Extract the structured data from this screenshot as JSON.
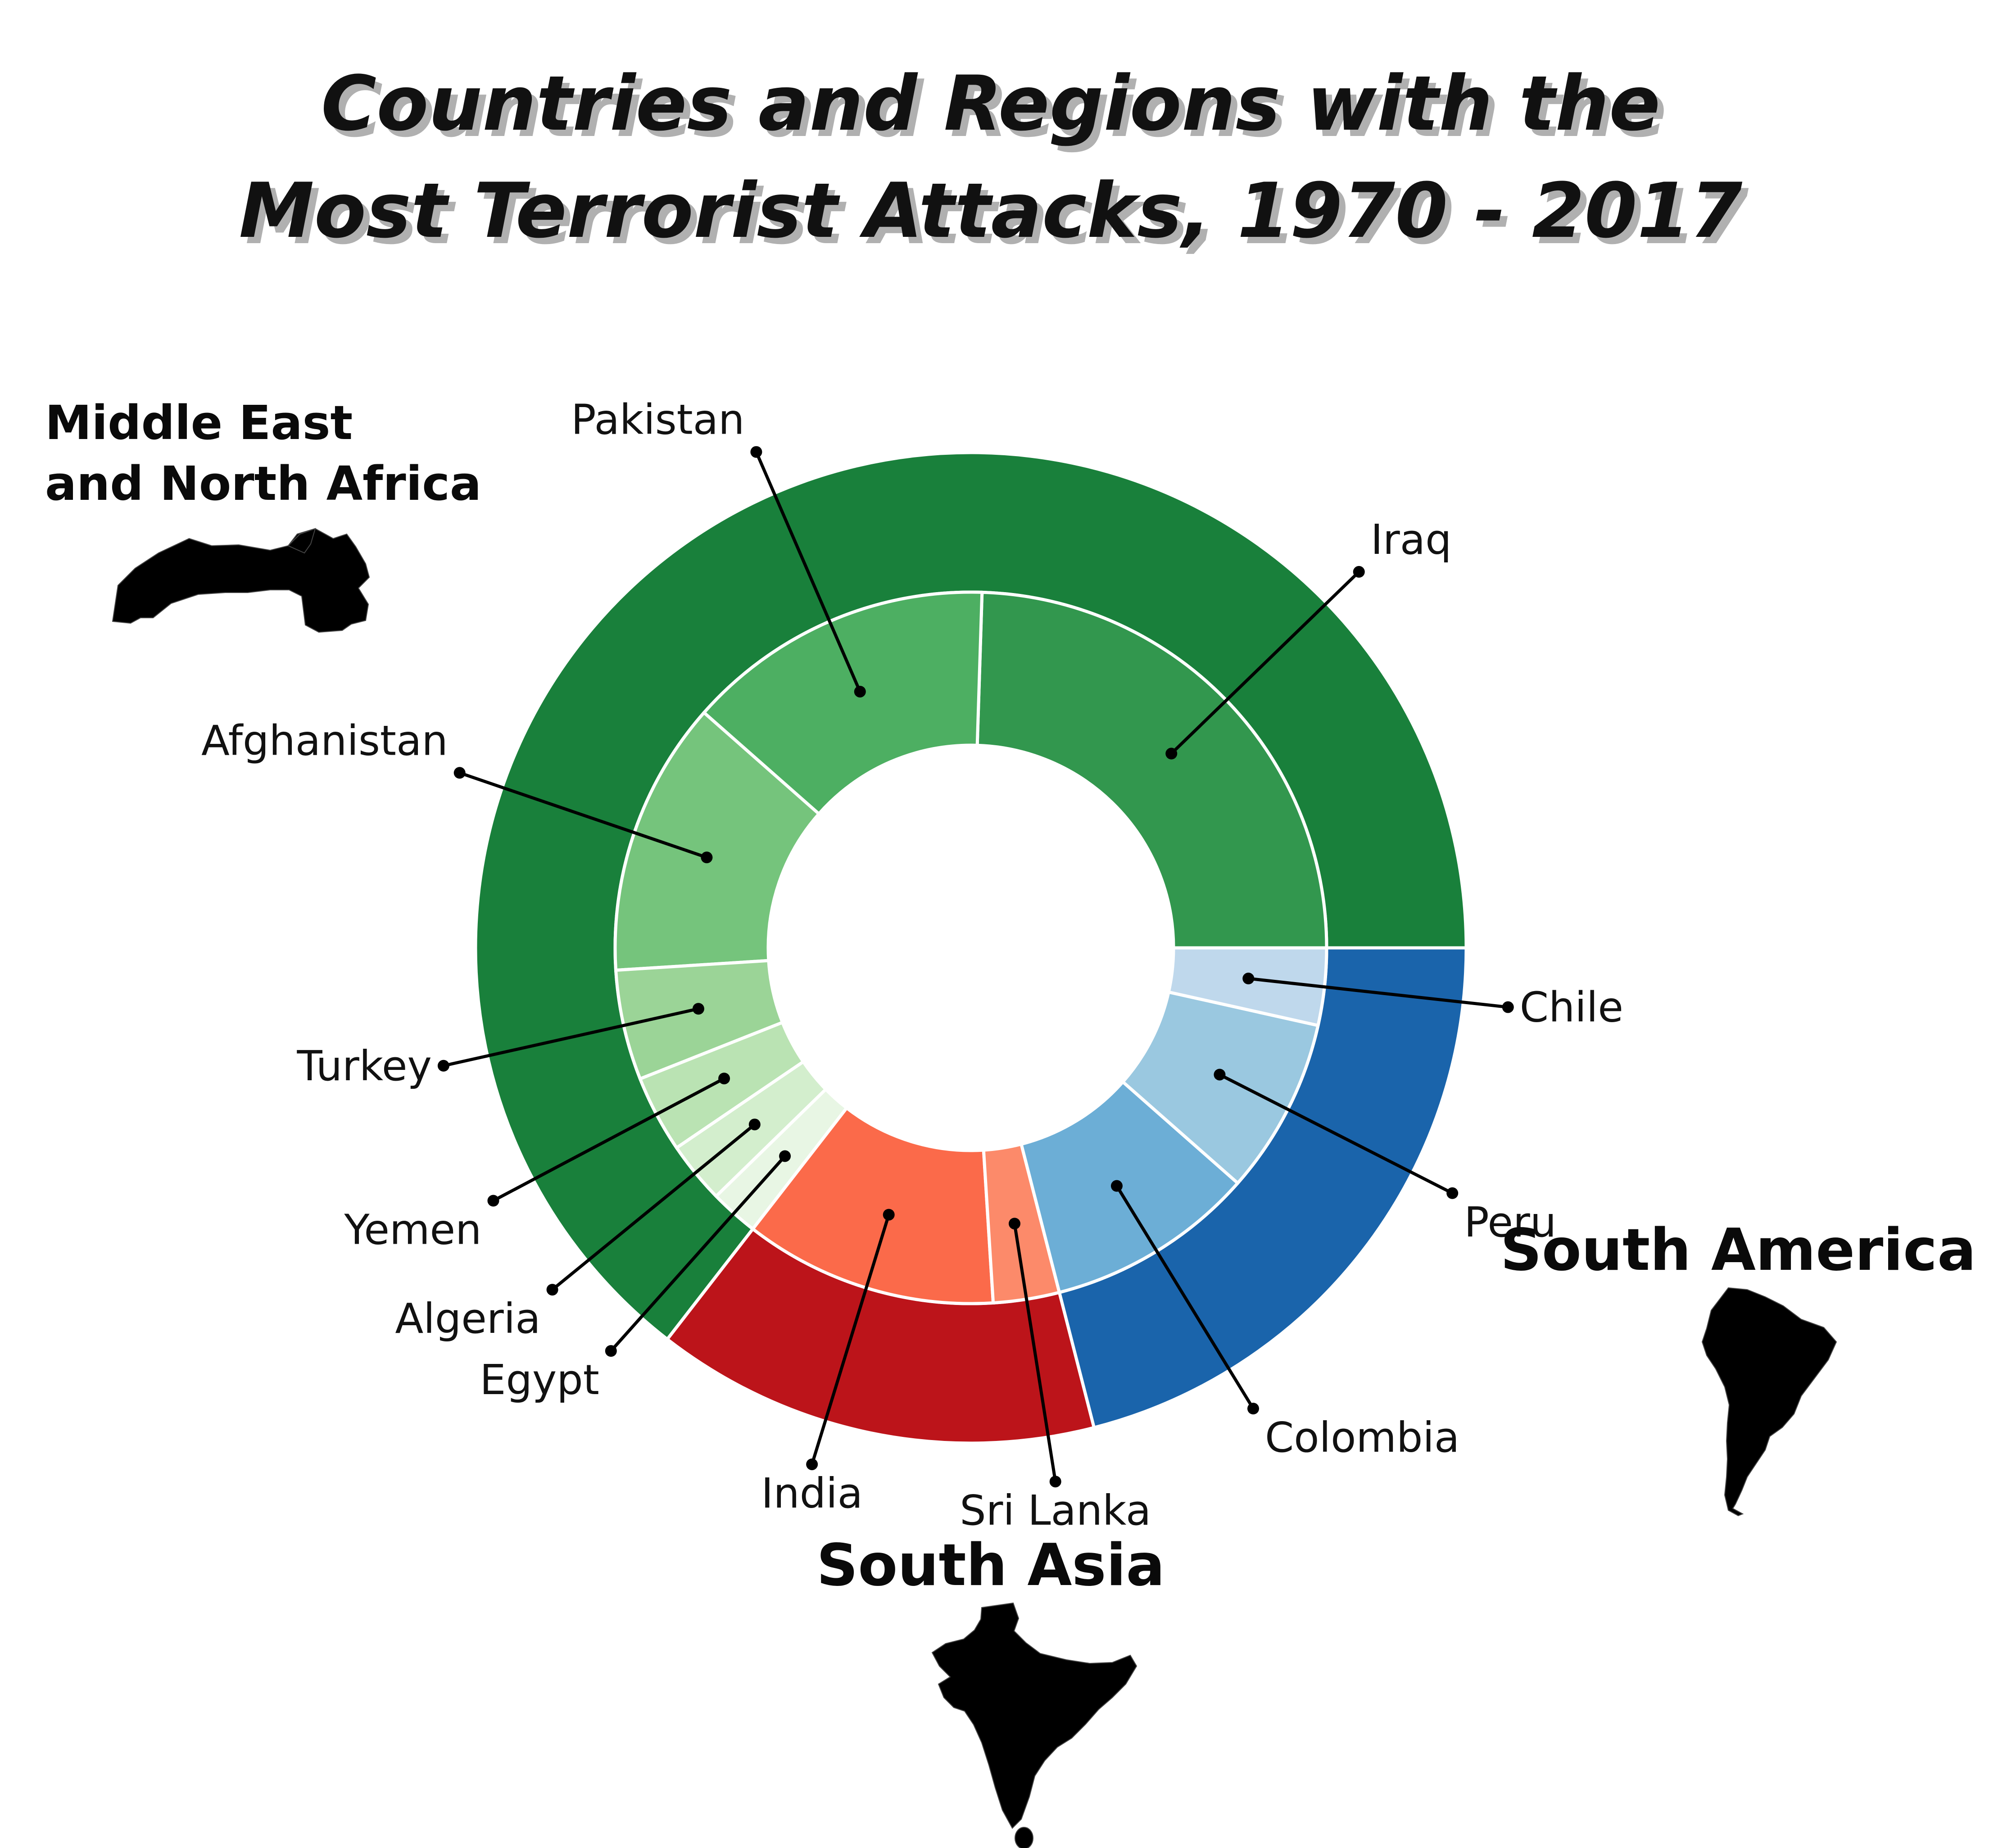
{
  "title_lines": [
    "Countries and Regions with the",
    "Most Terrorist Attacks, 1970 - 2017"
  ],
  "chart_data": {
    "type": "pie",
    "subtype": "nested-donut",
    "title": "Countries and Regions with the Most Terrorist Attacks, 1970 - 2017",
    "regions": [
      {
        "name": "Middle East and North Africa",
        "label_lines": [
          "Middle East",
          "and North Africa"
        ],
        "value": 64.5,
        "color": "#19803b",
        "map_icon": "middle-east-north-africa-map"
      },
      {
        "name": "South Asia",
        "label_lines": [
          "South Asia"
        ],
        "value": 14.5,
        "color": "#bc141a",
        "map_icon": "india-map"
      },
      {
        "name": "South America",
        "label_lines": [
          "South America"
        ],
        "value": 21.0,
        "color": "#1a64ab",
        "map_icon": "south-america-map"
      }
    ],
    "countries": [
      {
        "name": "Iraq",
        "region": "Middle East and North Africa",
        "value": 24.5,
        "color": "#32974e"
      },
      {
        "name": "Pakistan",
        "region": "Middle East and North Africa",
        "value": 14.0,
        "color": "#4daf62"
      },
      {
        "name": "Afghanistan",
        "region": "Middle East and North Africa",
        "value": 12.5,
        "color": "#75c47c"
      },
      {
        "name": "Turkey",
        "region": "Middle East and North Africa",
        "value": 5.0,
        "color": "#9bd497"
      },
      {
        "name": "Yemen",
        "region": "Middle East and North Africa",
        "value": 3.5,
        "color": "#bae3b3"
      },
      {
        "name": "Algeria",
        "region": "Middle East and North Africa",
        "value": 2.8,
        "color": "#d3eecd"
      },
      {
        "name": "Egypt",
        "region": "Middle East and North Africa",
        "value": 2.2,
        "color": "#e8f6e4"
      },
      {
        "name": "India",
        "region": "South Asia",
        "value": 11.5,
        "color": "#fb6a4a"
      },
      {
        "name": "Sri Lanka",
        "region": "South Asia",
        "value": 3.0,
        "color": "#fc8a6a"
      },
      {
        "name": "Colombia",
        "region": "South America",
        "value": 9.5,
        "color": "#6caed6"
      },
      {
        "name": "Peru",
        "region": "South America",
        "value": 8.0,
        "color": "#9ac8e0"
      },
      {
        "name": "Chile",
        "region": "South America",
        "value": 3.5,
        "color": "#bfd8ec"
      }
    ],
    "start_angle_deg": 0,
    "direction": "counterclockwise"
  }
}
